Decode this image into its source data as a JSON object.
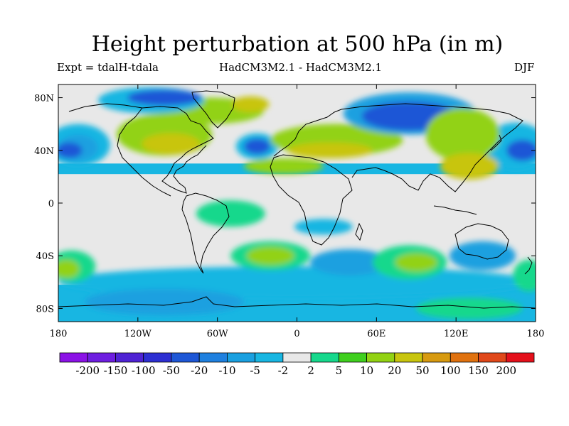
{
  "title": "Height perturbation at 500 hPa (in m)",
  "subtitle_left": "Expt = tdalH-tdala",
  "subtitle_center": "HadCM3M2.1 - HadCM3M2.1",
  "subtitle_right": "DJF",
  "map": {
    "projection": "cylindrical equidistant",
    "lon_range": [
      -180,
      180
    ],
    "lat_range": [
      -90,
      90
    ],
    "lat_ticks": [
      {
        "value": 80,
        "label": "80N"
      },
      {
        "value": 40,
        "label": "40N"
      },
      {
        "value": 0,
        "label": "0"
      },
      {
        "value": -40,
        "label": "40S"
      },
      {
        "value": -80,
        "label": "80S"
      }
    ],
    "lon_ticks": [
      {
        "value": -180,
        "label": "180"
      },
      {
        "value": -120,
        "label": "120W"
      },
      {
        "value": -60,
        "label": "60W"
      },
      {
        "value": 0,
        "label": "0"
      },
      {
        "value": 60,
        "label": "60E"
      },
      {
        "value": 120,
        "label": "120E"
      },
      {
        "value": 180,
        "label": "180"
      }
    ]
  },
  "colorbar": {
    "labels": [
      "-200",
      "-150",
      "-100",
      "-50",
      "-20",
      "-10",
      "-5",
      "-2",
      "2",
      "5",
      "10",
      "20",
      "50",
      "100",
      "150",
      "200"
    ],
    "colors": [
      "#8b12e6",
      "#6e1ee0",
      "#4f23d4",
      "#2d2fd2",
      "#1e57d6",
      "#1f80df",
      "#1aa0e0",
      "#18b6e2",
      "#e8e8e8",
      "#16d88c",
      "#3fcf1e",
      "#92d213",
      "#c8c50e",
      "#d79a10",
      "#e0720f",
      "#e0481a",
      "#e4101b"
    ]
  },
  "regions": [
    {
      "lon": -165,
      "lat": 44,
      "rlon": 24,
      "rlat": 16,
      "color": "#18b6e2"
    },
    {
      "lon": -165,
      "lat": 42,
      "rlon": 15,
      "rlat": 10,
      "color": "#1aa0e0"
    },
    {
      "lon": -172,
      "lat": 40,
      "rlon": 10,
      "rlat": 6,
      "color": "#1e57d6"
    },
    {
      "lon": 165,
      "lat": 43,
      "rlon": 24,
      "rlat": 18,
      "color": "#18b6e2"
    },
    {
      "lon": 170,
      "lat": 40,
      "rlon": 12,
      "rlat": 8,
      "color": "#1e57d6"
    },
    {
      "lon": -100,
      "lat": 52,
      "rlon": 36,
      "rlat": 16,
      "color": "#92d213"
    },
    {
      "lon": -95,
      "lat": 45,
      "rlon": 22,
      "rlat": 8,
      "color": "#c8c50e"
    },
    {
      "lon": -65,
      "lat": 70,
      "rlon": 40,
      "rlat": 10,
      "color": "#92d213"
    },
    {
      "lon": -35,
      "lat": 75,
      "rlon": 14,
      "rlat": 6,
      "color": "#c8c50e"
    },
    {
      "lon": -110,
      "lat": 78,
      "rlon": 40,
      "rlat": 10,
      "color": "#18b6e2"
    },
    {
      "lon": -100,
      "lat": 80,
      "rlon": 28,
      "rlat": 6,
      "color": "#1e57d6"
    },
    {
      "lon": -30,
      "lat": 43,
      "rlon": 16,
      "rlat": 10,
      "color": "#18b6e2"
    },
    {
      "lon": -30,
      "lat": 43,
      "rlon": 10,
      "rlat": 6,
      "color": "#1e57d6"
    },
    {
      "lon": 30,
      "lat": 48,
      "rlon": 50,
      "rlat": 12,
      "color": "#92d213"
    },
    {
      "lon": 25,
      "lat": 40,
      "rlon": 32,
      "rlat": 6,
      "color": "#c8c50e"
    },
    {
      "lon": -10,
      "lat": 28,
      "rlon": 30,
      "rlat": 6,
      "color": "#92d213"
    },
    {
      "lon": 85,
      "lat": 68,
      "rlon": 50,
      "rlat": 16,
      "color": "#1aa0e0"
    },
    {
      "lon": 85,
      "lat": 66,
      "rlon": 36,
      "rlat": 11,
      "color": "#1e57d6"
    },
    {
      "lon": 125,
      "lat": 52,
      "rlon": 28,
      "rlat": 20,
      "color": "#92d213"
    },
    {
      "lon": 130,
      "lat": 28,
      "rlon": 22,
      "rlat": 10,
      "color": "#c8c50e"
    },
    {
      "lon": -50,
      "lat": -8,
      "rlon": 26,
      "rlat": 10,
      "color": "#16d88c"
    },
    {
      "lon": 0,
      "lat": -60,
      "rlon": 180,
      "rlat": 12,
      "color": "#18b6e2"
    },
    {
      "lon": -20,
      "lat": -40,
      "rlon": 30,
      "rlat": 11,
      "color": "#16d88c"
    },
    {
      "lon": -20,
      "lat": -40,
      "rlon": 18,
      "rlat": 7,
      "color": "#92d213"
    },
    {
      "lon": 40,
      "lat": -45,
      "rlon": 30,
      "rlat": 10,
      "color": "#1aa0e0"
    },
    {
      "lon": 85,
      "lat": -45,
      "rlon": 28,
      "rlat": 13,
      "color": "#16d88c"
    },
    {
      "lon": 90,
      "lat": -45,
      "rlon": 16,
      "rlat": 7,
      "color": "#92d213"
    },
    {
      "lon": 140,
      "lat": -40,
      "rlon": 25,
      "rlat": 11,
      "color": "#1aa0e0"
    },
    {
      "lon": -170,
      "lat": -48,
      "rlon": 18,
      "rlat": 12,
      "color": "#16d88c"
    },
    {
      "lon": -174,
      "lat": -50,
      "rlon": 10,
      "rlat": 7,
      "color": "#92d213"
    },
    {
      "lon": 175,
      "lat": -55,
      "rlon": 12,
      "rlat": 12,
      "color": "#16d88c"
    },
    {
      "lon": -100,
      "lat": -75,
      "rlon": 60,
      "rlat": 10,
      "color": "#1aa0e0"
    },
    {
      "lon": 130,
      "lat": -80,
      "rlon": 40,
      "rlat": 8,
      "color": "#16d88c"
    },
    {
      "lon": 20,
      "lat": -18,
      "rlon": 22,
      "rlat": 6,
      "color": "#18b6e2"
    }
  ],
  "bands": [
    {
      "lat_top": 30,
      "lat_bottom": 22,
      "color": "#18b6e2"
    },
    {
      "lat_top": -62,
      "lat_bottom": -90,
      "color": "#18b6e2"
    }
  ]
}
